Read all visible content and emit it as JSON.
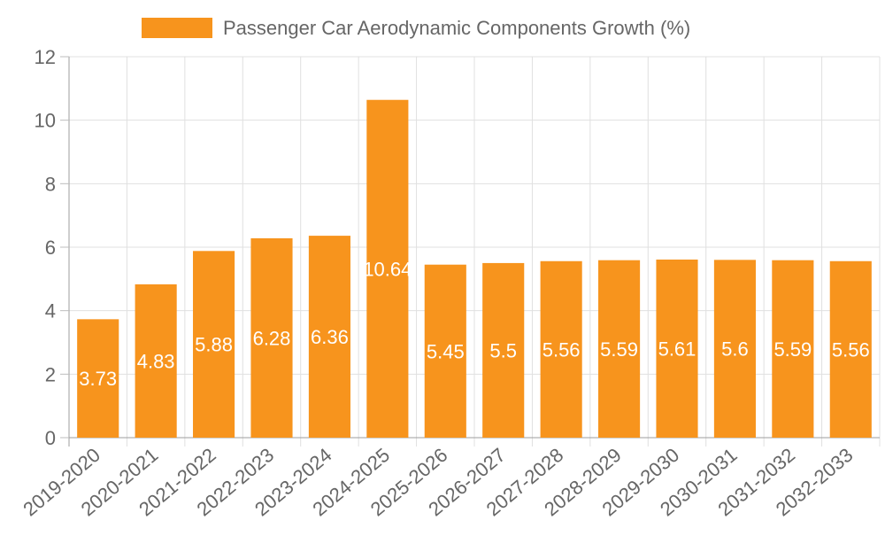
{
  "chart_data": {
    "type": "bar",
    "title": "",
    "xlabel": "",
    "ylabel": "",
    "ylim": [
      0,
      12
    ],
    "yticks": [
      0,
      2,
      4,
      6,
      8,
      10,
      12
    ],
    "grid": true,
    "legend_position": "top",
    "categories": [
      "2019-2020",
      "2020-2021",
      "2021-2022",
      "2022-2023",
      "2023-2024",
      "2024-2025",
      "2025-2026",
      "2026-2027",
      "2027-2028",
      "2028-2029",
      "2029-2030",
      "2030-2031",
      "2031-2032",
      "2032-2033"
    ],
    "series": [
      {
        "name": "Passenger Car Aerodynamic Components Growth (%)",
        "color": "#F7941D",
        "values": [
          3.73,
          4.83,
          5.88,
          6.28,
          6.36,
          10.64,
          5.45,
          5.5,
          5.56,
          5.59,
          5.61,
          5.6,
          5.59,
          5.56
        ],
        "labels": [
          "3.73",
          "4.83",
          "5.88",
          "6.28",
          "6.36",
          "10.64",
          "5.45",
          "5.5",
          "5.56",
          "5.59",
          "5.61",
          "5.6",
          "5.59",
          "5.56"
        ]
      }
    ]
  }
}
